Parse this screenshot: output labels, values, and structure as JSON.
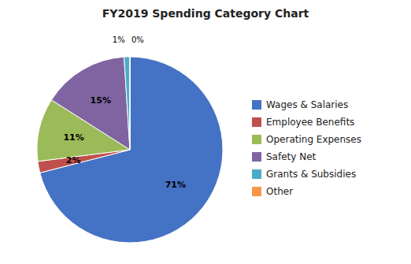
{
  "chart_data": {
    "type": "pie",
    "title": "FY2019 Spending  Category Chart",
    "categories": [
      "Wages & Salaries",
      "Employee Benefits",
      "Operating Expenses",
      "Safety Net",
      "Grants & Subsidies",
      "Other"
    ],
    "values": [
      71,
      2,
      11,
      15,
      1,
      0
    ],
    "value_labels": [
      "71%",
      "2%",
      "11%",
      "15%",
      "1%",
      "0%"
    ],
    "colors": [
      "#4472C4",
      "#C0504D",
      "#9BBB59",
      "#8064A2",
      "#4BACC6",
      "#F79646"
    ],
    "data_labels": true
  }
}
